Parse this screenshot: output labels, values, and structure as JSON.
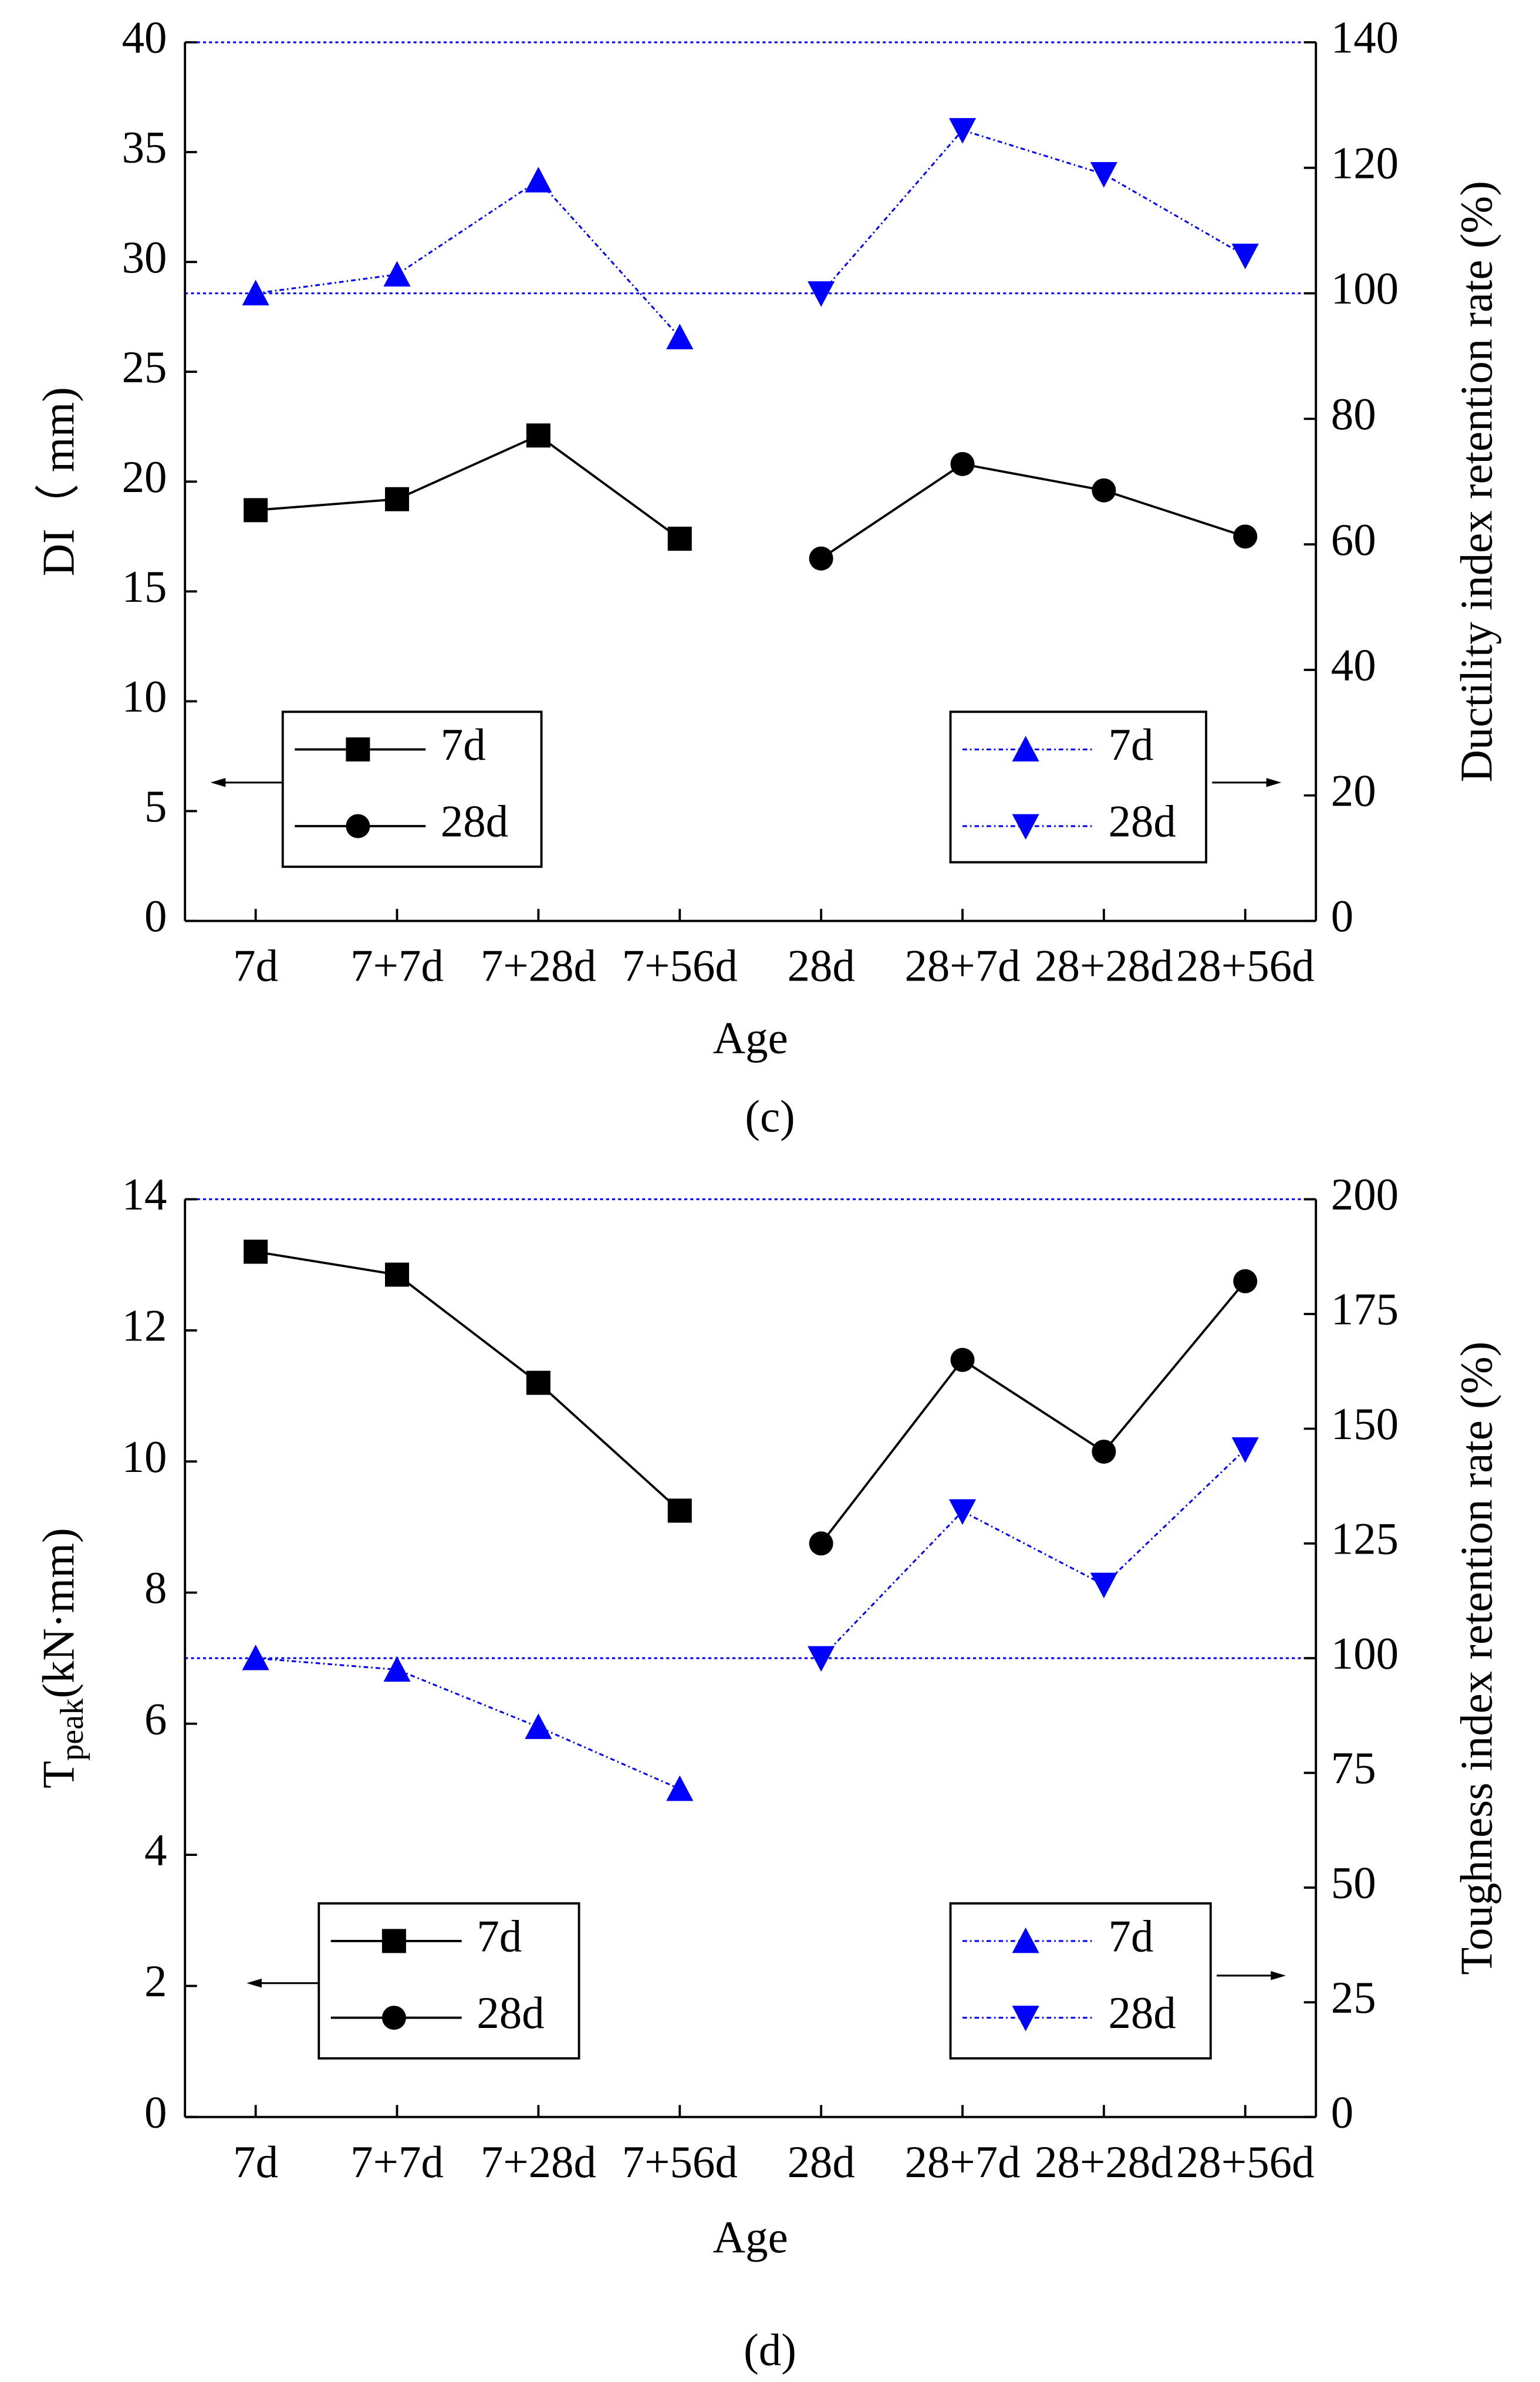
{
  "chart_data": [
    {
      "type": "line",
      "panel_label": "(c)",
      "x_label": "Age",
      "y_label": "DI（ mm)",
      "y2_label": "Ductility index retention rate (%)",
      "categories": [
        "7d",
        "7+7d",
        "7+28d",
        "7+56d",
        "28d",
        "28+7d",
        "28+28d",
        "28+56d"
      ],
      "ylim": [
        0,
        40
      ],
      "yticks": [
        0,
        5,
        10,
        15,
        20,
        25,
        30,
        35,
        40
      ],
      "y2lim": [
        0,
        140
      ],
      "y2ticks": [
        0,
        20,
        40,
        60,
        80,
        100,
        120,
        140
      ],
      "y2_reference_line": 100,
      "series": [
        {
          "name": "7d",
          "color": "#000000",
          "marker": "square",
          "values": [
            18.7,
            19.2,
            22.1,
            17.4,
            null,
            null,
            null,
            null
          ]
        },
        {
          "name": "28d",
          "color": "#000000",
          "marker": "circle",
          "values": [
            null,
            null,
            null,
            null,
            16.5,
            20.8,
            19.6,
            17.5
          ]
        },
        {
          "name": "7d",
          "color": "#0000ff",
          "marker": "triangle-up",
          "axis": "y2",
          "values": [
            100,
            103,
            118,
            93,
            null,
            null,
            null,
            null
          ]
        },
        {
          "name": "28d",
          "color": "#0000ff",
          "marker": "triangle-down",
          "axis": "y2",
          "values": [
            null,
            null,
            null,
            null,
            100,
            126,
            119,
            106
          ]
        }
      ]
    },
    {
      "type": "line",
      "panel_label": "(d)",
      "x_label": "Age",
      "y_label": {
        "main": "T",
        "sub": "peak",
        "rest": "(kN·mm)"
      },
      "y2_label": "Toughness index retention rate (%)",
      "categories": [
        "7d",
        "7+7d",
        "7+28d",
        "7+56d",
        "28d",
        "28+7d",
        "28+28d",
        "28+56d"
      ],
      "ylim": [
        0,
        14
      ],
      "yticks": [
        0,
        2,
        4,
        6,
        8,
        10,
        12,
        14
      ],
      "y2lim": [
        0,
        200
      ],
      "y2ticks": [
        0,
        25,
        50,
        75,
        100,
        125,
        150,
        175,
        200
      ],
      "y2_reference_line": 100,
      "series": [
        {
          "name": "7d",
          "color": "#000000",
          "marker": "square",
          "values": [
            13.2,
            12.85,
            11.2,
            9.25,
            null,
            null,
            null,
            null
          ]
        },
        {
          "name": "28d",
          "color": "#000000",
          "marker": "circle",
          "values": [
            null,
            null,
            null,
            null,
            8.75,
            11.55,
            10.15,
            12.75
          ]
        },
        {
          "name": "7d",
          "color": "#0000ff",
          "marker": "triangle-up",
          "axis": "y2",
          "values": [
            100,
            97.5,
            85,
            71.5,
            null,
            null,
            null,
            null
          ]
        },
        {
          "name": "28d",
          "color": "#0000ff",
          "marker": "triangle-down",
          "axis": "y2",
          "values": [
            null,
            null,
            null,
            null,
            100,
            132,
            116,
            145.5
          ]
        }
      ]
    }
  ]
}
